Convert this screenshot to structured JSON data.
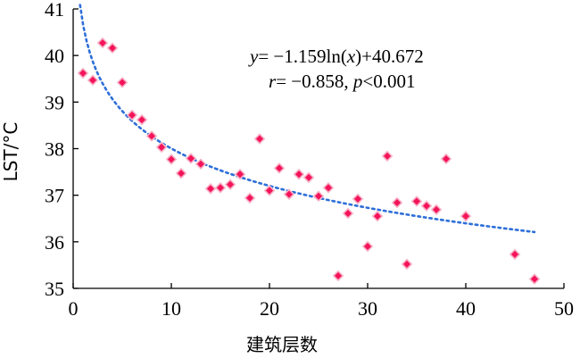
{
  "chart_data": {
    "type": "scatter",
    "xlabel": "建筑层数",
    "ylabel": "LST/°C",
    "xlim": [
      0,
      50
    ],
    "ylim": [
      35,
      41
    ],
    "xticks": [
      "0",
      "10",
      "20",
      "30",
      "40",
      "50"
    ],
    "yticks": [
      "35",
      "36",
      "37",
      "38",
      "39",
      "40",
      "41"
    ],
    "grid": false,
    "colors": {
      "points": "#f4145a",
      "point_outline": "#f7b3c8",
      "trendline": "#2e6fd9"
    },
    "points": [
      {
        "x": 1,
        "y": 39.62
      },
      {
        "x": 2,
        "y": 39.47
      },
      {
        "x": 3,
        "y": 40.27
      },
      {
        "x": 4,
        "y": 40.16
      },
      {
        "x": 5,
        "y": 39.42
      },
      {
        "x": 6,
        "y": 38.72
      },
      {
        "x": 7,
        "y": 38.62
      },
      {
        "x": 8,
        "y": 38.27
      },
      {
        "x": 9,
        "y": 38.03
      },
      {
        "x": 10,
        "y": 37.77
      },
      {
        "x": 11,
        "y": 37.47
      },
      {
        "x": 12,
        "y": 37.79
      },
      {
        "x": 13,
        "y": 37.67
      },
      {
        "x": 14,
        "y": 37.14
      },
      {
        "x": 15,
        "y": 37.16
      },
      {
        "x": 16,
        "y": 37.23
      },
      {
        "x": 17,
        "y": 37.45
      },
      {
        "x": 18,
        "y": 36.94
      },
      {
        "x": 19,
        "y": 38.21
      },
      {
        "x": 20,
        "y": 37.1
      },
      {
        "x": 21,
        "y": 37.58
      },
      {
        "x": 22,
        "y": 37.02
      },
      {
        "x": 23,
        "y": 37.45
      },
      {
        "x": 24,
        "y": 37.38
      },
      {
        "x": 25,
        "y": 36.98
      },
      {
        "x": 26,
        "y": 37.16
      },
      {
        "x": 27,
        "y": 35.27
      },
      {
        "x": 28,
        "y": 36.61
      },
      {
        "x": 29,
        "y": 36.92
      },
      {
        "x": 30,
        "y": 35.9
      },
      {
        "x": 31,
        "y": 36.55
      },
      {
        "x": 32,
        "y": 37.84
      },
      {
        "x": 33,
        "y": 36.84
      },
      {
        "x": 34,
        "y": 35.52
      },
      {
        "x": 35,
        "y": 36.87
      },
      {
        "x": 36,
        "y": 36.77
      },
      {
        "x": 37,
        "y": 36.69
      },
      {
        "x": 38,
        "y": 37.78
      },
      {
        "x": 40,
        "y": 36.55
      },
      {
        "x": 45,
        "y": 35.73
      },
      {
        "x": 47,
        "y": 35.2
      }
    ],
    "trendline": {
      "type": "logarithmic",
      "a": -1.159,
      "b": 40.672,
      "x_range": [
        0.7,
        47
      ],
      "equation_text": [
        "y",
        "= −1.159ln(",
        "x",
        ")+40.672"
      ],
      "stats_text": [
        "r",
        "= −0.858, ",
        "p",
        "<0.001"
      ]
    }
  }
}
